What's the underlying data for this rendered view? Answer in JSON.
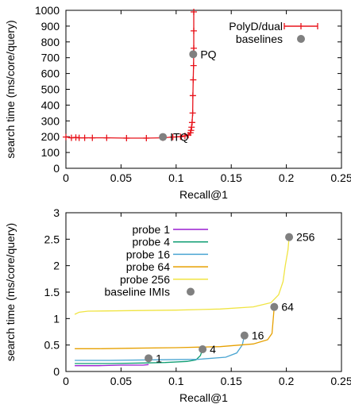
{
  "chart_data": [
    {
      "type": "line",
      "xlabel": "Recall@1",
      "ylabel": "search time (ms/core/query)",
      "xlim": [
        0,
        0.25
      ],
      "ylim": [
        0,
        1000
      ],
      "xticks": [
        "0",
        "0.05",
        "0.1",
        "0.15",
        "0.2",
        "0.25"
      ],
      "yticks": [
        "0",
        "100",
        "200",
        "300",
        "400",
        "500",
        "600",
        "700",
        "800",
        "900",
        "1000"
      ],
      "legend_position": "top-right",
      "series": [
        {
          "name": "PolyD/dual",
          "color": "#e8131b",
          "marker": "plus",
          "x": [
            0.0,
            0.005,
            0.009,
            0.012,
            0.017,
            0.024,
            0.037,
            0.055,
            0.073,
            0.088,
            0.097,
            0.104,
            0.108,
            0.111,
            0.113,
            0.1135,
            0.114,
            0.1145,
            0.115,
            0.1152,
            0.1155,
            0.1158,
            0.116,
            0.116,
            0.116
          ],
          "y": [
            198,
            193,
            195,
            193,
            193,
            193,
            193,
            191,
            191,
            193,
            198,
            200,
            205,
            210,
            225,
            240,
            260,
            290,
            350,
            460,
            560,
            650,
            760,
            870,
            990
          ]
        },
        {
          "name": "baselines",
          "color": "#808080",
          "marker": "circle",
          "x": [
            0.088,
            0.1155
          ],
          "y": [
            198,
            722
          ],
          "labels": [
            "ITQ",
            "PQ"
          ]
        }
      ]
    },
    {
      "type": "line",
      "xlabel": "Recall@1",
      "ylabel": "search time (ms/core/query)",
      "xlim": [
        0,
        0.25
      ],
      "ylim": [
        0,
        3
      ],
      "xticks": [
        "0",
        "0.05",
        "0.1",
        "0.15",
        "0.2",
        "0.25"
      ],
      "yticks": [
        "0",
        "0.5",
        "1",
        "1.5",
        "2",
        "2.5",
        "3"
      ],
      "legend_position": "top-left",
      "series": [
        {
          "name": "probe 1",
          "color": "#9a1fd0",
          "x": [
            0.008,
            0.03,
            0.05,
            0.07,
            0.075
          ],
          "y": [
            0.11,
            0.11,
            0.12,
            0.12,
            0.13
          ]
        },
        {
          "name": "probe 4",
          "color": "#0f9e73",
          "x": [
            0.008,
            0.04,
            0.07,
            0.09,
            0.11,
            0.118,
            0.122,
            0.124
          ],
          "y": [
            0.15,
            0.15,
            0.16,
            0.17,
            0.19,
            0.22,
            0.3,
            0.42
          ]
        },
        {
          "name": "probe 16",
          "color": "#4aa5d2",
          "x": [
            0.008,
            0.04,
            0.08,
            0.12,
            0.145,
            0.155,
            0.16,
            0.162
          ],
          "y": [
            0.21,
            0.21,
            0.22,
            0.23,
            0.27,
            0.35,
            0.5,
            0.68
          ]
        },
        {
          "name": "probe 64",
          "color": "#e6a000",
          "x": [
            0.008,
            0.03,
            0.06,
            0.1,
            0.14,
            0.17,
            0.183,
            0.187,
            0.189
          ],
          "y": [
            0.43,
            0.43,
            0.44,
            0.45,
            0.47,
            0.52,
            0.6,
            0.72,
            1.22
          ]
        },
        {
          "name": "probe 256",
          "color": "#f0e442",
          "x": [
            0.008,
            0.012,
            0.02,
            0.06,
            0.1,
            0.14,
            0.17,
            0.186,
            0.193,
            0.197,
            0.199,
            0.2015,
            0.2025
          ],
          "y": [
            1.08,
            1.12,
            1.14,
            1.15,
            1.16,
            1.18,
            1.22,
            1.3,
            1.45,
            1.7,
            2.0,
            2.3,
            2.54
          ]
        },
        {
          "name": "baseline IMIs",
          "color": "#808080",
          "marker": "circle",
          "x": [
            0.075,
            0.124,
            0.162,
            0.189,
            0.2025
          ],
          "y": [
            0.25,
            0.42,
            0.68,
            1.22,
            2.54
          ],
          "labels": [
            "1",
            "4",
            "16",
            "64",
            "256"
          ]
        }
      ]
    }
  ]
}
